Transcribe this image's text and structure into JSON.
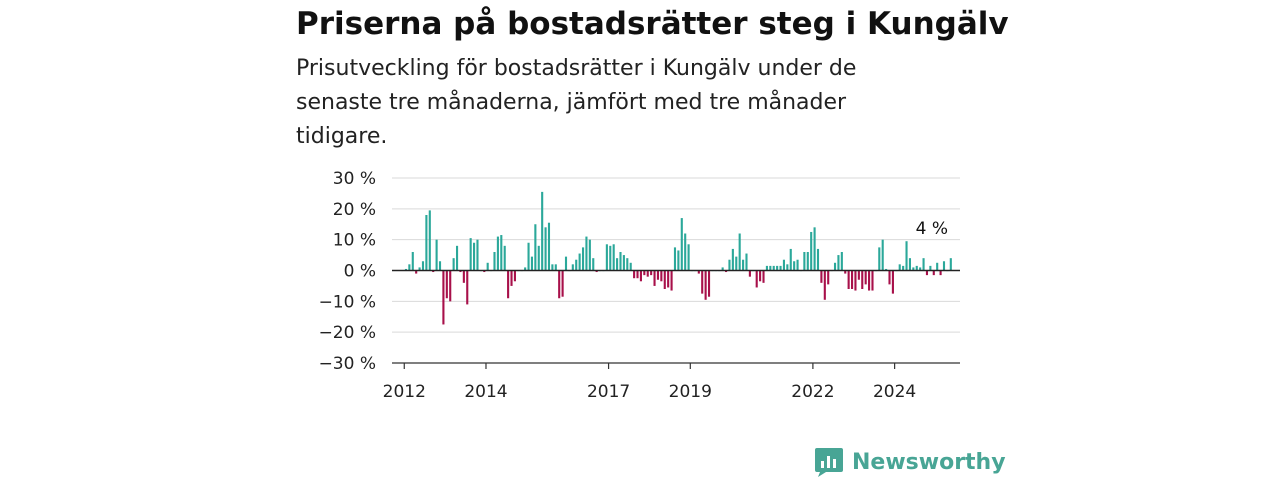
{
  "header": {
    "title": "Priserna på bostadsrätter steg i Kungälv",
    "subtitle": "Prisutveckling för bostadsrätter i Kungälv under de senaste tre månaderna, jämfört med tre månader tidigare."
  },
  "brand": {
    "name": "Newsworthy",
    "icon": "newsworthy-logo-icon"
  },
  "colors": {
    "positive": "#2ba89a",
    "negative": "#a8104a",
    "grid": "#d9d9d9",
    "axis": "#333333"
  },
  "chart_data": {
    "type": "bar",
    "ylim": [
      -30,
      30
    ],
    "yticks": [
      30,
      20,
      10,
      0,
      -10,
      -20,
      -30
    ],
    "ytick_labels": [
      "30 %",
      "20 %",
      "10 %",
      "0 %",
      "−10 %",
      "−20 %",
      "−30 %"
    ],
    "xtick_labels": [
      {
        "label": "2012",
        "year": 2012
      },
      {
        "label": "2014",
        "year": 2014
      },
      {
        "label": "2017",
        "year": 2017
      },
      {
        "label": "2019",
        "year": 2019
      },
      {
        "label": "2022",
        "year": 2022
      },
      {
        "label": "2024",
        "year": 2024
      }
    ],
    "x_start": 2011.7,
    "x_end": 2025.6,
    "period": "monthly",
    "start": "2012-01",
    "values": [
      0.5,
      2,
      6,
      -1,
      1,
      3,
      18,
      19.5,
      -0.5,
      10,
      3,
      -17.5,
      -9,
      -10,
      4,
      8,
      -0.5,
      -4,
      -11,
      10.5,
      9,
      10,
      0,
      -0.5,
      2.5,
      0,
      6,
      11,
      11.5,
      8,
      -9,
      -5,
      -3.5,
      0,
      0,
      1,
      9,
      4.5,
      15,
      8,
      25.5,
      14,
      15.5,
      2,
      2,
      -9,
      -8.5,
      4.5,
      0,
      2,
      3.5,
      5.5,
      7.5,
      11,
      10,
      4,
      -0.5,
      0,
      0,
      8.5,
      8,
      8.5,
      4,
      6,
      5,
      4,
      2.5,
      -2.5,
      -2.5,
      -3.5,
      -1.5,
      -2,
      -1.5,
      -5,
      -3,
      -3.5,
      -6,
      -5.5,
      -6.5,
      7.5,
      6.5,
      17,
      12,
      8.5,
      0,
      0,
      -1,
      -7.5,
      -9.5,
      -8.5,
      0,
      0,
      0,
      1,
      -0.5,
      3.5,
      7,
      4.5,
      12,
      3.5,
      5.5,
      -2,
      0,
      -5.5,
      -3.5,
      -4,
      1.5,
      1.5,
      1.5,
      1.5,
      1.5,
      3.5,
      2,
      7,
      3,
      3.5,
      0,
      6,
      6,
      12.5,
      14,
      7,
      -4,
      -9.5,
      -4.5,
      0,
      2.5,
      5,
      6,
      -1,
      -6,
      -6,
      -6.5,
      -3,
      -6,
      -4.5,
      -6.5,
      -6.5,
      0,
      7.5,
      10,
      0.5,
      -4.5,
      -7.5,
      0,
      2,
      1.5,
      9.5,
      4,
      1,
      1.5,
      1,
      4,
      -1.5,
      1.5,
      -1.5,
      2.5,
      -1.5,
      3,
      0,
      4
    ],
    "annotation": {
      "label": "4 %",
      "value": 4
    }
  }
}
